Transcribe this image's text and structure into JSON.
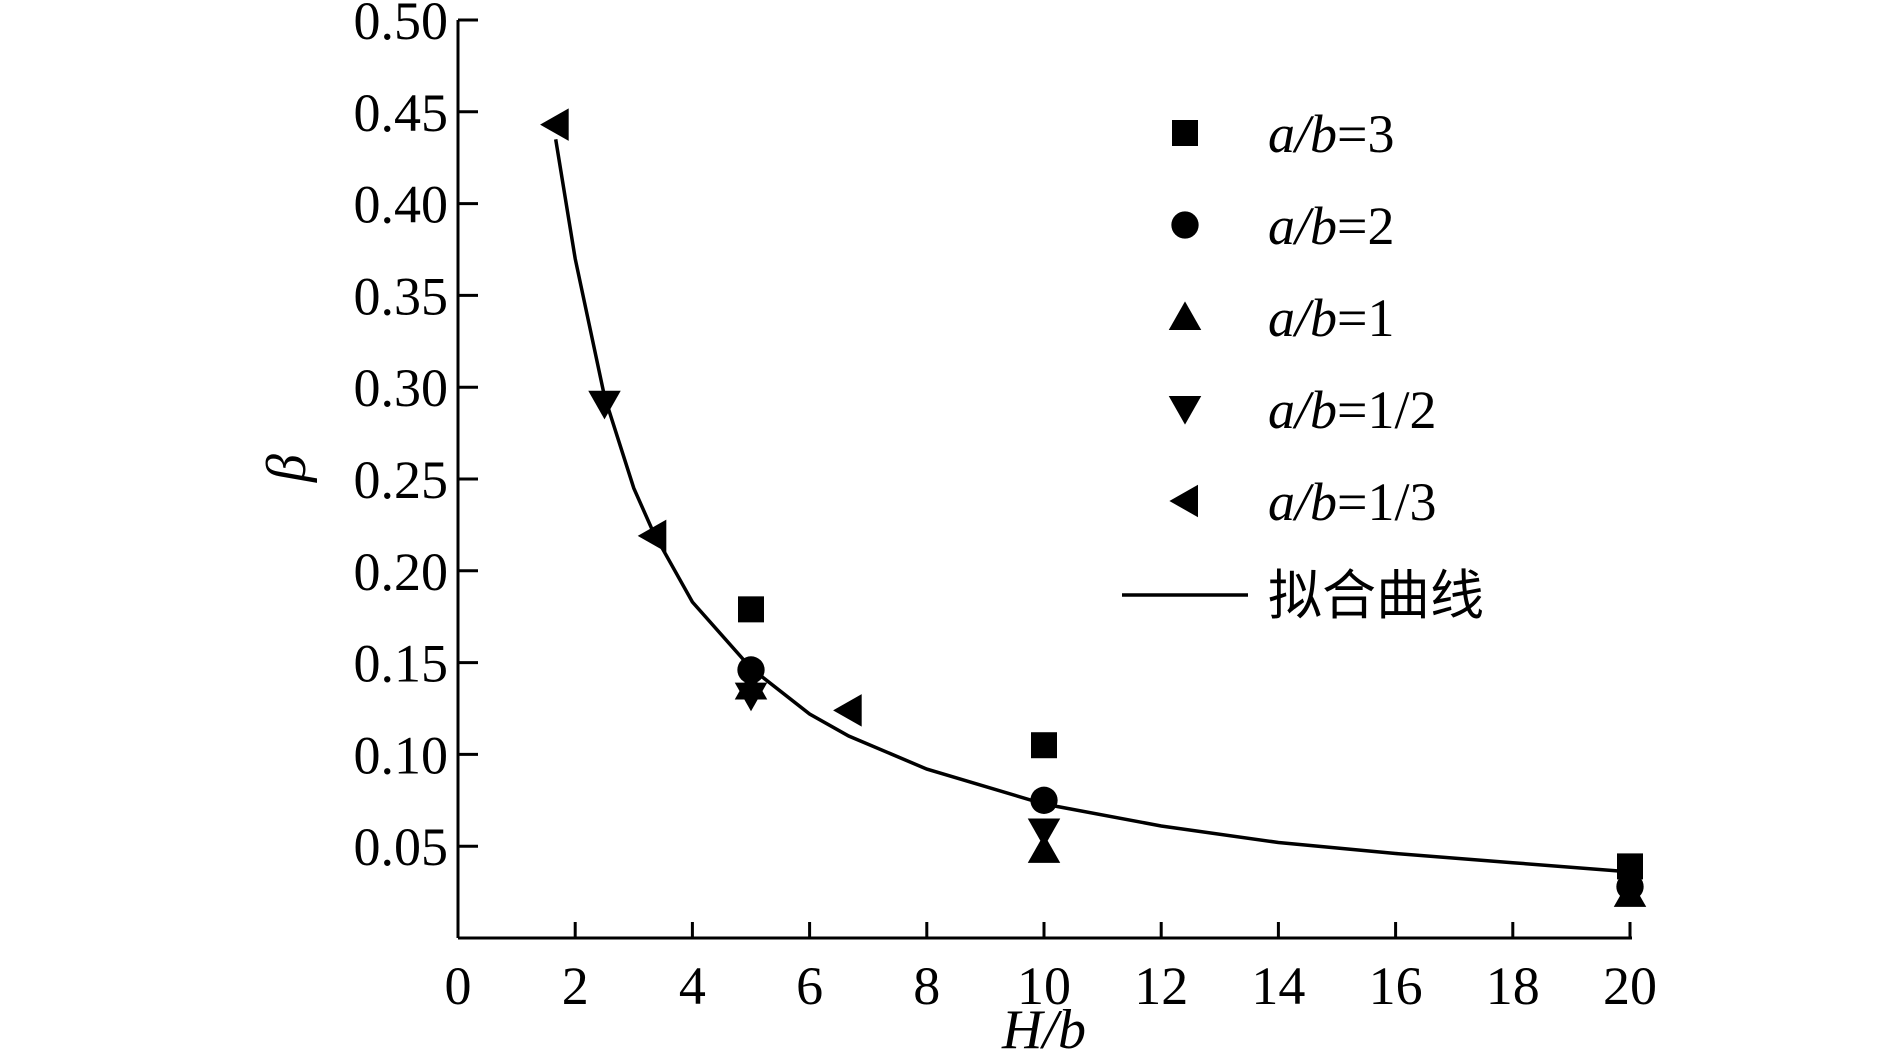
{
  "chart_data": {
    "type": "scatter",
    "xlabel": "H/b",
    "ylabel": "β",
    "xlim": [
      0,
      20
    ],
    "ylim": [
      0,
      0.5
    ],
    "x_ticks": [
      "0",
      "2",
      "4",
      "6",
      "8",
      "10",
      "12",
      "14",
      "16",
      "18",
      "20"
    ],
    "y_ticks": [
      "0.05",
      "0.10",
      "0.15",
      "0.20",
      "0.25",
      "0.30",
      "0.35",
      "0.40",
      "0.45",
      "0.50"
    ],
    "grid": false,
    "legend_position": "top-right",
    "series": [
      {
        "name": "a/b=3",
        "label_italic": "a/b",
        "label_rest": "=3",
        "marker": "square",
        "points": [
          [
            5,
            0.179
          ],
          [
            10,
            0.105
          ],
          [
            20,
            0.039
          ]
        ]
      },
      {
        "name": "a/b=2",
        "label_italic": "a/b",
        "label_rest": "=2",
        "marker": "circle",
        "points": [
          [
            5,
            0.146
          ],
          [
            10,
            0.075
          ],
          [
            20,
            0.028
          ]
        ]
      },
      {
        "name": "a/b=1",
        "label_italic": "a/b",
        "label_rest": "=1",
        "marker": "triangle-up",
        "points": [
          [
            5,
            0.137
          ],
          [
            10,
            0.048
          ],
          [
            20,
            0.024
          ]
        ]
      },
      {
        "name": "a/b=1/2",
        "label_italic": "a/b",
        "label_rest": "=1/2",
        "marker": "triangle-down",
        "points": [
          [
            2.5,
            0.291
          ],
          [
            5,
            0.132
          ],
          [
            10,
            0.058
          ]
        ]
      },
      {
        "name": "a/b=1/3",
        "label_italic": "a/b",
        "label_rest": "=1/3",
        "marker": "triangle-left",
        "points": [
          [
            1.667,
            0.443
          ],
          [
            3.333,
            0.219
          ],
          [
            6.667,
            0.124
          ]
        ]
      }
    ],
    "fit_curve": {
      "name": "拟合曲线",
      "points": [
        [
          1.667,
          0.435
        ],
        [
          2,
          0.37
        ],
        [
          2.5,
          0.295
        ],
        [
          3,
          0.245
        ],
        [
          3.333,
          0.221
        ],
        [
          4,
          0.183
        ],
        [
          5,
          0.147
        ],
        [
          6,
          0.122
        ],
        [
          6.667,
          0.11
        ],
        [
          8,
          0.092
        ],
        [
          10,
          0.073
        ],
        [
          12,
          0.061
        ],
        [
          14,
          0.052
        ],
        [
          16,
          0.046
        ],
        [
          18,
          0.041
        ],
        [
          20,
          0.036
        ]
      ]
    }
  }
}
